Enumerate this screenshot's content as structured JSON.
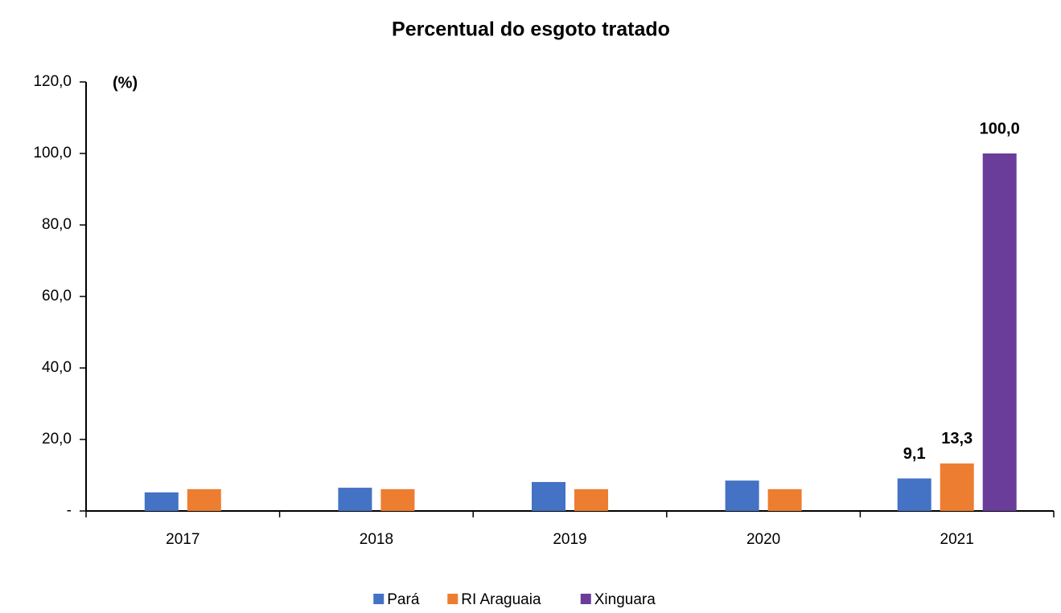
{
  "chart_data": {
    "type": "bar",
    "title": "Percentual do esgoto tratado",
    "y_label": "(%)",
    "categories": [
      "2017",
      "2018",
      "2019",
      "2020",
      "2021"
    ],
    "series": [
      {
        "name": "Pará",
        "color": "#4472c4",
        "values": [
          5.2,
          6.5,
          8.1,
          8.5,
          9.1
        ],
        "value_labels": [
          null,
          null,
          null,
          null,
          "9,1"
        ]
      },
      {
        "name": "RI Araguaia",
        "color": "#ed7d31",
        "values": [
          6.1,
          6.1,
          6.1,
          6.1,
          13.3
        ],
        "value_labels": [
          null,
          null,
          null,
          null,
          "13,3"
        ]
      },
      {
        "name": "Xinguara",
        "color": "#6a3d9a",
        "values": [
          null,
          null,
          null,
          null,
          100.0
        ],
        "value_labels": [
          null,
          null,
          null,
          null,
          "100,0"
        ]
      }
    ],
    "ylim": [
      0,
      120
    ],
    "yticks": [
      {
        "value": 0,
        "label": "-"
      },
      {
        "value": 20,
        "label": "20,0"
      },
      {
        "value": 40,
        "label": "40,0"
      },
      {
        "value": 60,
        "label": "60,0"
      },
      {
        "value": 80,
        "label": "80,0"
      },
      {
        "value": 100,
        "label": "100,0"
      },
      {
        "value": 120,
        "label": "120,0"
      }
    ],
    "grid": false,
    "legend": "bottom"
  }
}
